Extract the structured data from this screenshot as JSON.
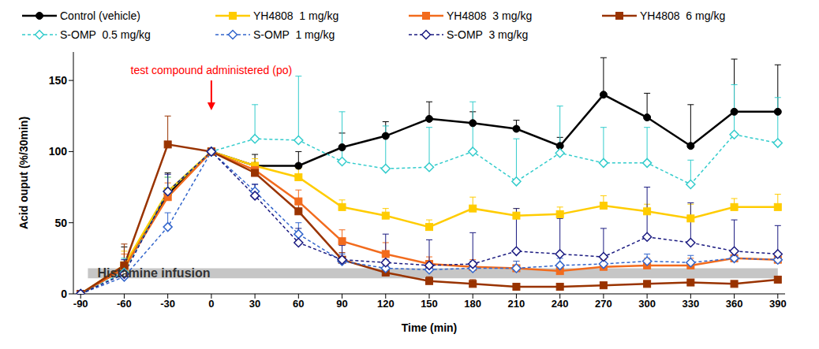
{
  "chart_data": {
    "type": "line",
    "y_label": "Acid ouput (%/30min)",
    "x_label": "Time (min)",
    "x": [
      -90,
      -60,
      -30,
      0,
      30,
      60,
      90,
      120,
      150,
      180,
      210,
      240,
      270,
      300,
      330,
      360,
      390
    ],
    "xlim": [
      -95,
      395
    ],
    "xticks": [
      -90,
      -60,
      -30,
      0,
      30,
      60,
      90,
      120,
      150,
      180,
      210,
      240,
      270,
      300,
      330,
      360,
      390
    ],
    "ylim": [
      0,
      170
    ],
    "yticks": [
      0,
      50,
      100,
      150
    ],
    "legend": "top",
    "grid": false,
    "series": [
      {
        "name": "Control (vehicle)",
        "color": "#000000",
        "marker": "circle",
        "line_style": "solid",
        "values": [
          0,
          18,
          70,
          100,
          90,
          90,
          103,
          111,
          123,
          120,
          116,
          104,
          140,
          124,
          104,
          128,
          128
        ],
        "errors": [
          0,
          15,
          15,
          0,
          8,
          10,
          10,
          10,
          12,
          8,
          6,
          6,
          26,
          17,
          29,
          37,
          33
        ]
      },
      {
        "name": "YH4808  1 mg/kg",
        "color": "#ffcc00",
        "marker": "square",
        "line_style": "solid",
        "values": [
          0,
          20,
          72,
          100,
          90,
          82,
          61,
          55,
          47,
          60,
          55,
          56,
          62,
          58,
          53,
          61,
          61
        ],
        "errors": [
          0,
          10,
          10,
          0,
          5,
          6,
          5,
          5,
          5,
          8,
          5,
          5,
          7,
          5,
          10,
          6,
          9
        ]
      },
      {
        "name": "YH4808  3 mg/kg",
        "color": "#f26b1d",
        "marker": "square",
        "line_style": "solid",
        "values": [
          0,
          18,
          68,
          100,
          87,
          65,
          37,
          28,
          21,
          19,
          18,
          16,
          19,
          20,
          20,
          25,
          24
        ],
        "errors": [
          0,
          10,
          10,
          0,
          5,
          8,
          8,
          8,
          5,
          5,
          5,
          5,
          5,
          5,
          5,
          5,
          5
        ]
      },
      {
        "name": "YH4808  6 mg/kg",
        "color": "#993300",
        "marker": "square",
        "line_style": "solid",
        "values": [
          0,
          20,
          105,
          100,
          85,
          58,
          24,
          15,
          9,
          7,
          5,
          5,
          6,
          7,
          8,
          7,
          10
        ],
        "errors": [
          0,
          15,
          20,
          0,
          5,
          8,
          5,
          5,
          3,
          3,
          2,
          2,
          2,
          2,
          2,
          2,
          2
        ]
      },
      {
        "name": "S-OMP  0.5 mg/kg",
        "color": "#33cccc",
        "marker": "diamond",
        "line_style": "dashed",
        "values": [
          0,
          15,
          72,
          100,
          109,
          108,
          93,
          88,
          89,
          100,
          79,
          99,
          92,
          92,
          77,
          112,
          106
        ],
        "errors": [
          0,
          10,
          10,
          0,
          24,
          45,
          35,
          30,
          28,
          35,
          30,
          33,
          25,
          25,
          17,
          35,
          32
        ]
      },
      {
        "name": "S-OMP  1 mg/kg",
        "color": "#3366cc",
        "marker": "diamond",
        "line_style": "dashed",
        "values": [
          0,
          12,
          47,
          100,
          72,
          42,
          23,
          18,
          17,
          18,
          18,
          20,
          21,
          23,
          22,
          25,
          24
        ],
        "errors": [
          0,
          8,
          10,
          0,
          5,
          8,
          5,
          6,
          5,
          5,
          5,
          5,
          5,
          5,
          5,
          5,
          5
        ]
      },
      {
        "name": "S-OMP  3 mg/kg",
        "color": "#1a1a80",
        "marker": "diamond",
        "line_style": "dashed",
        "values": [
          0,
          14,
          72,
          100,
          69,
          36,
          24,
          22,
          20,
          21,
          30,
          28,
          26,
          40,
          36,
          30,
          28
        ],
        "errors": [
          0,
          10,
          12,
          0,
          8,
          10,
          10,
          20,
          18,
          22,
          30,
          25,
          20,
          35,
          28,
          22,
          20
        ]
      }
    ],
    "annotations": [
      {
        "text": "test compound administered (po)",
        "x": 0,
        "y": 150,
        "color": "#ff0000"
      },
      {
        "text": "Histamine infusion",
        "x_range": [
          -85,
          390
        ],
        "y_range": [
          11,
          18
        ],
        "color": "#c0c0c0"
      }
    ]
  }
}
